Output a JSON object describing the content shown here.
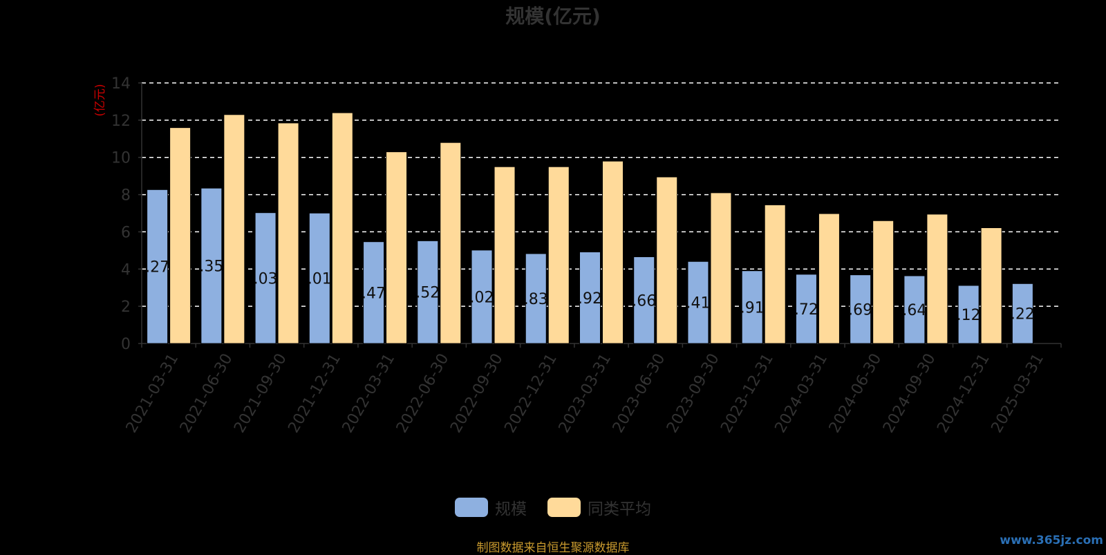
{
  "chart_data": {
    "type": "bar",
    "title": "规模(亿元)",
    "ylabel": "(亿元)",
    "ylim": [
      0,
      14
    ],
    "yticks": [
      "0",
      "2",
      "4",
      "6",
      "8",
      "10",
      "12",
      "14"
    ],
    "categories": [
      "2021-03-31",
      "2021-06-30",
      "2021-09-30",
      "2021-12-31",
      "2022-03-31",
      "2022-06-30",
      "2022-09-30",
      "2022-12-31",
      "2023-03-31",
      "2023-06-30",
      "2023-09-30",
      "2023-12-31",
      "2024-03-31",
      "2024-06-30",
      "2024-09-30",
      "2024-12-31",
      "2025-03-31"
    ],
    "series": [
      {
        "name": "规模",
        "color": "#8eb0e0",
        "values": [
          8.27,
          8.35,
          7.03,
          7.01,
          5.47,
          5.52,
          5.02,
          4.83,
          4.92,
          4.66,
          4.41,
          3.91,
          3.72,
          3.69,
          3.64,
          3.12,
          3.22
        ],
        "labels": [
          ".27",
          ".35",
          ".03",
          ".01",
          ".47",
          ".52",
          ".02",
          ".83",
          ".92",
          ".66",
          ".41",
          ".91",
          ".72",
          ".69",
          ".64",
          ".12",
          ".22"
        ]
      },
      {
        "name": "同类平均",
        "color": "#ffda9a",
        "values": [
          11.6,
          12.3,
          11.85,
          12.4,
          10.3,
          10.8,
          9.5,
          9.5,
          9.8,
          8.95,
          8.1,
          7.45,
          6.98,
          6.6,
          6.95,
          6.22,
          null
        ]
      }
    ],
    "grid": true,
    "legend_position": "bottom-center"
  },
  "source_note": "制图数据来自恒生聚源数据库",
  "watermark": "www.365jz.com"
}
